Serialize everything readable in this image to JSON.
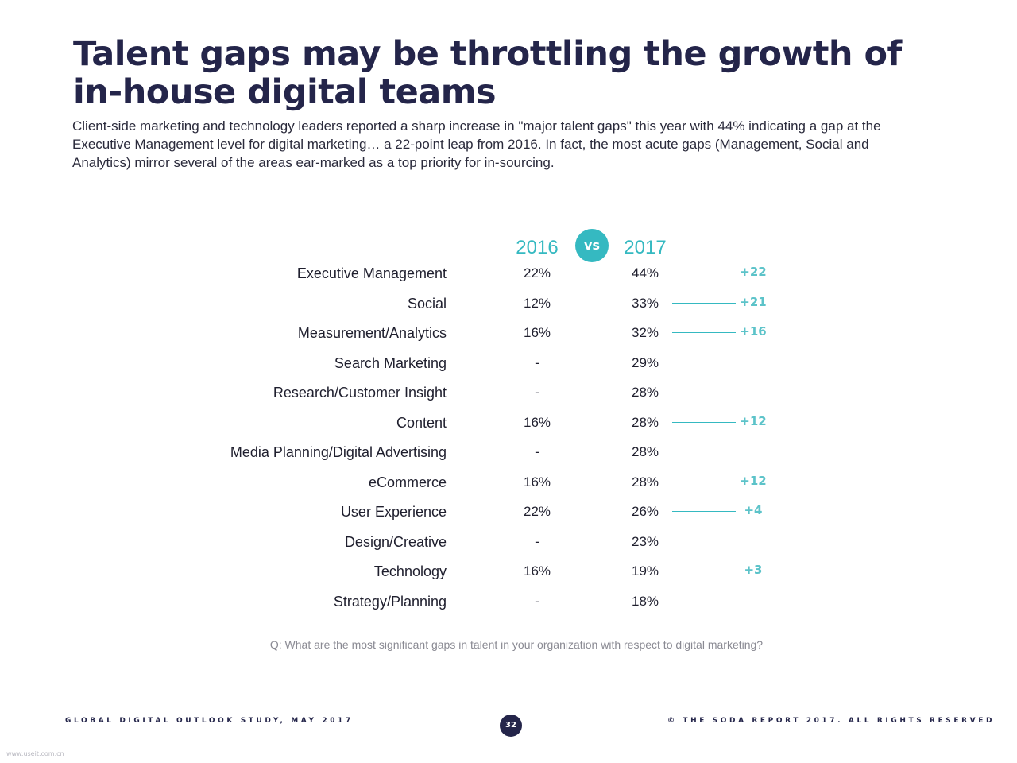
{
  "title": "Talent gaps may be throttling the growth of in-house digital teams",
  "subtitle": "Client-side marketing and technology leaders reported a sharp increase in \"major talent gaps\" this year with 44% indicating a gap at the Executive Management level for digital marketing… a 22-point leap from 2016. In fact, the most acute gaps (Management, Social and Analytics) mirror several of the areas ear-marked as a top priority for in-sourcing.",
  "columns": {
    "year_a": "2016",
    "vs": "vs",
    "year_b": "2017"
  },
  "colors": {
    "accent": "#35b9c1",
    "title": "#24254a",
    "delta": "#5cc3c9"
  },
  "rows": [
    {
      "category": "Executive Management",
      "v2016": "22%",
      "v2017": "44%",
      "delta": "+22"
    },
    {
      "category": "Social",
      "v2016": "12%",
      "v2017": "33%",
      "delta": "+21"
    },
    {
      "category": "Measurement/Analytics",
      "v2016": "16%",
      "v2017": "32%",
      "delta": "+16"
    },
    {
      "category": "Search Marketing",
      "v2016": "-",
      "v2017": "29%",
      "delta": ""
    },
    {
      "category": "Research/Customer Insight",
      "v2016": "-",
      "v2017": "28%",
      "delta": ""
    },
    {
      "category": "Content",
      "v2016": "16%",
      "v2017": "28%",
      "delta": "+12"
    },
    {
      "category": "Media Planning/Digital Advertising",
      "v2016": "-",
      "v2017": "28%",
      "delta": ""
    },
    {
      "category": "eCommerce",
      "v2016": "16%",
      "v2017": "28%",
      "delta": "+12"
    },
    {
      "category": "User Experience",
      "v2016": "22%",
      "v2017": "26%",
      "delta": "+4"
    },
    {
      "category": "Design/Creative",
      "v2016": "-",
      "v2017": "23%",
      "delta": ""
    },
    {
      "category": "Technology",
      "v2016": "16%",
      "v2017": "19%",
      "delta": "+3"
    },
    {
      "category": "Strategy/Planning",
      "v2016": "-",
      "v2017": "18%",
      "delta": ""
    }
  ],
  "question": "Q: What are the most significant gaps in talent in your organization with respect to digital marketing?",
  "footer": {
    "left": "GLOBAL DIGITAL OUTLOOK STUDY, MAY 2017",
    "page": "32",
    "right": "© THE SODA REPORT 2017. ALL RIGHTS RESERVED"
  },
  "watermark": "www.useit.com.cn"
}
